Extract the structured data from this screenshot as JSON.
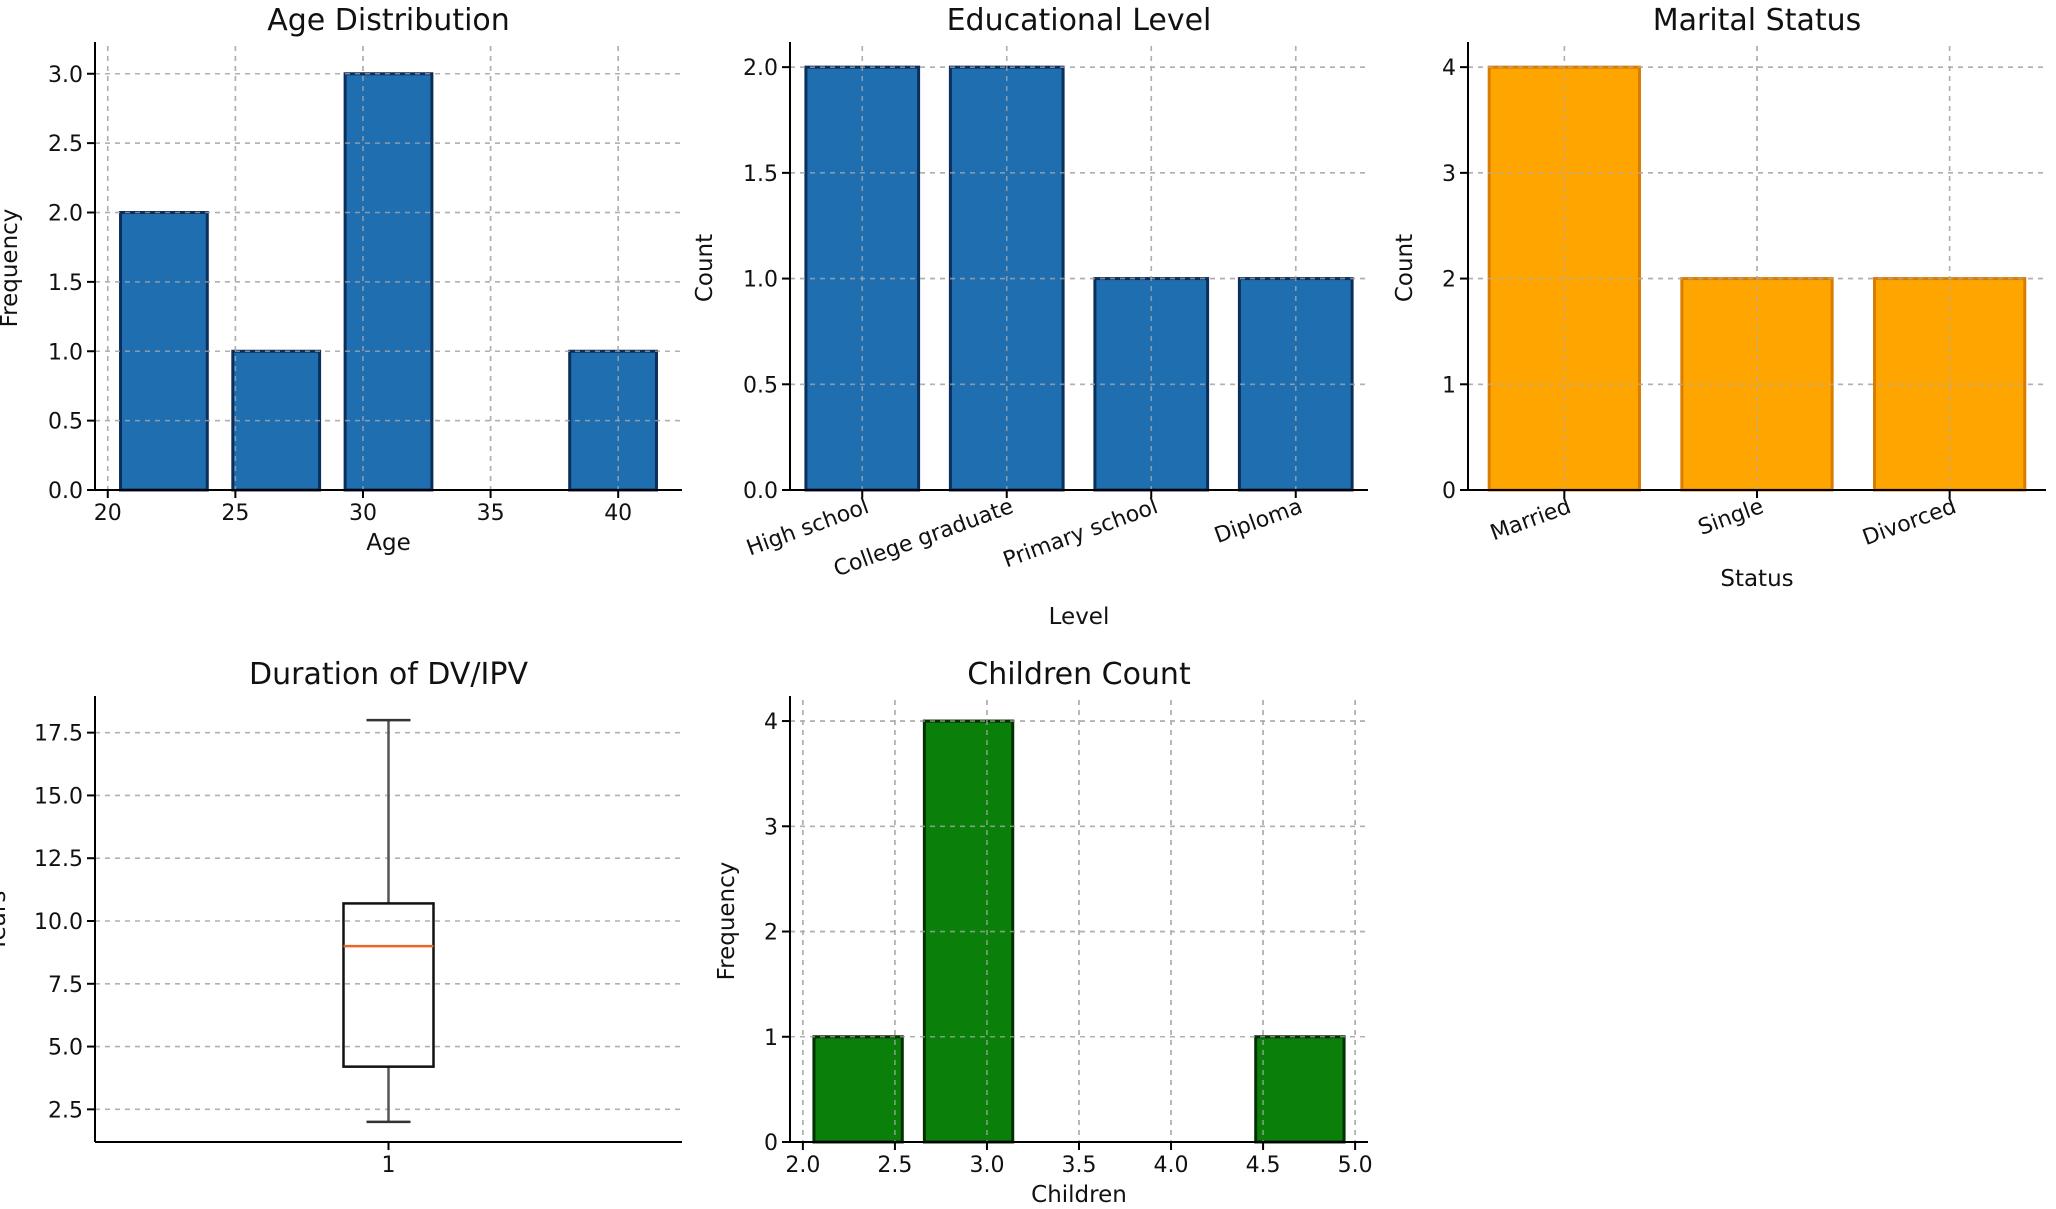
{
  "chart_data": [
    {
      "id": "age",
      "type": "bar",
      "title": "Age Distribution",
      "xlabel": "Age",
      "ylabel": "Frequency",
      "xlim": [
        19.5,
        42.5
      ],
      "ylim": [
        0,
        3.2
      ],
      "xticks": [
        20,
        25,
        30,
        35,
        40
      ],
      "xtick_labels": [
        "20",
        "25",
        "30",
        "35",
        "40"
      ],
      "yticks": [
        0,
        0.5,
        1,
        1.5,
        2,
        2.5,
        3
      ],
      "ytick_labels": [
        "0.0",
        "0.5",
        "1.0",
        "1.5",
        "2.0",
        "2.5",
        "3.0"
      ],
      "bins": [
        [
          20.5,
          23.9
        ],
        [
          24.9,
          28.3
        ],
        [
          29.3,
          32.7
        ],
        [
          38.1,
          41.5
        ]
      ],
      "values": [
        2,
        1,
        3,
        1
      ],
      "color": "#1f6fb0",
      "edge_color": "#0b2f5c"
    },
    {
      "id": "education",
      "type": "bar",
      "title": "Educational Level",
      "xlabel": "Level",
      "ylabel": "Count",
      "ylim": [
        0,
        2.1
      ],
      "categories": [
        "High school",
        "College graduate",
        "Primary school",
        "Diploma"
      ],
      "values": [
        2,
        2,
        1,
        1
      ],
      "yticks": [
        0,
        0.5,
        1,
        1.5,
        2
      ],
      "ytick_labels": [
        "0.0",
        "0.5",
        "1.0",
        "1.5",
        "2.0"
      ],
      "color": "#1f6fb0",
      "edge_color": "#0b2f5c"
    },
    {
      "id": "marital",
      "type": "bar",
      "title": "Marital Status",
      "xlabel": "Status",
      "ylabel": "Count",
      "ylim": [
        0,
        4.2
      ],
      "categories": [
        "Married",
        "Single",
        "Divorced"
      ],
      "values": [
        4,
        2,
        2
      ],
      "yticks": [
        0,
        1,
        2,
        3,
        4
      ],
      "ytick_labels": [
        "0",
        "1",
        "2",
        "3",
        "4"
      ],
      "color": "#ffa500",
      "edge_color": "#d97c00"
    },
    {
      "id": "duration",
      "type": "box",
      "title": "Duration of DV/IPV",
      "xlabel": "",
      "ylabel": "Years",
      "ylim": [
        1.2,
        18.8
      ],
      "yticks": [
        2.5,
        5,
        7.5,
        10,
        12.5,
        15,
        17.5
      ],
      "ytick_labels": [
        "2.5",
        "5.0",
        "7.5",
        "10.0",
        "12.5",
        "15.0",
        "17.5"
      ],
      "xtick_labels": [
        "1"
      ],
      "box": {
        "whislo": 2,
        "q1": 4.2,
        "med": 9,
        "q3": 10.7,
        "whishi": 18
      },
      "median_color": "#e8652c"
    },
    {
      "id": "children",
      "type": "bar",
      "title": "Children Count",
      "xlabel": "Children",
      "ylabel": "Frequency",
      "xlim": [
        1.93,
        5.07
      ],
      "ylim": [
        0,
        4.2
      ],
      "xticks": [
        2,
        2.5,
        3,
        3.5,
        4,
        4.5,
        5
      ],
      "xtick_labels": [
        "2.0",
        "2.5",
        "3.0",
        "3.5",
        "4.0",
        "4.5",
        "5.0"
      ],
      "yticks": [
        0,
        1,
        2,
        3,
        4
      ],
      "ytick_labels": [
        "0",
        "1",
        "2",
        "3",
        "4"
      ],
      "bins": [
        [
          2.06,
          2.54
        ],
        [
          2.66,
          3.14
        ],
        [
          4.46,
          4.94
        ]
      ],
      "values": [
        1,
        4,
        1
      ],
      "color": "#0a7f0a",
      "edge_color": "#032f03"
    }
  ]
}
